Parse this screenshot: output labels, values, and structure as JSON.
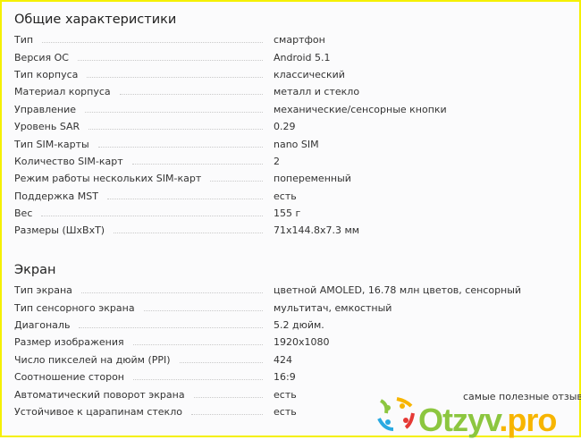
{
  "sections": [
    {
      "title": "Общие характеристики",
      "rows": [
        {
          "label": "Тип",
          "value": "смартфон"
        },
        {
          "label": "Версия ОС",
          "value": "Android 5.1"
        },
        {
          "label": "Тип корпуса",
          "value": "классический"
        },
        {
          "label": "Материал корпуса",
          "value": "металл и стекло"
        },
        {
          "label": "Управление",
          "value": "механические/сенсорные кнопки"
        },
        {
          "label": "Уровень SAR",
          "value": "0.29"
        },
        {
          "label": "Тип SIM-карты",
          "value": "nano SIM"
        },
        {
          "label": "Количество SIM-карт",
          "value": "2"
        },
        {
          "label": "Режим работы нескольких SIM-карт",
          "value": "попеременный"
        },
        {
          "label": "Поддержка MST",
          "value": "есть"
        },
        {
          "label": "Вес",
          "value": "155 г"
        },
        {
          "label": "Размеры (ШxВxТ)",
          "value": "71x144.8x7.3 мм"
        }
      ]
    },
    {
      "title": "Экран",
      "rows": [
        {
          "label": "Тип экрана",
          "value": "цветной AMOLED, 16.78 млн цветов, сенсорный"
        },
        {
          "label": "Тип сенсорного экрана",
          "value": "мультитач, емкостный"
        },
        {
          "label": "Диагональ",
          "value": "5.2 дюйм."
        },
        {
          "label": "Размер изображения",
          "value": "1920x1080"
        },
        {
          "label": "Число пикселей на дюйм (PPI)",
          "value": "424"
        },
        {
          "label": "Соотношение сторон",
          "value": "16:9"
        },
        {
          "label": "Автоматический поворот экрана",
          "value": "есть"
        },
        {
          "label": "Устойчивое к царапинам стекло",
          "value": "есть"
        }
      ]
    }
  ],
  "watermark": {
    "tagline": "самые полезные отзывы",
    "brand": "Otzyv",
    "brand_suffix": ".pro"
  }
}
